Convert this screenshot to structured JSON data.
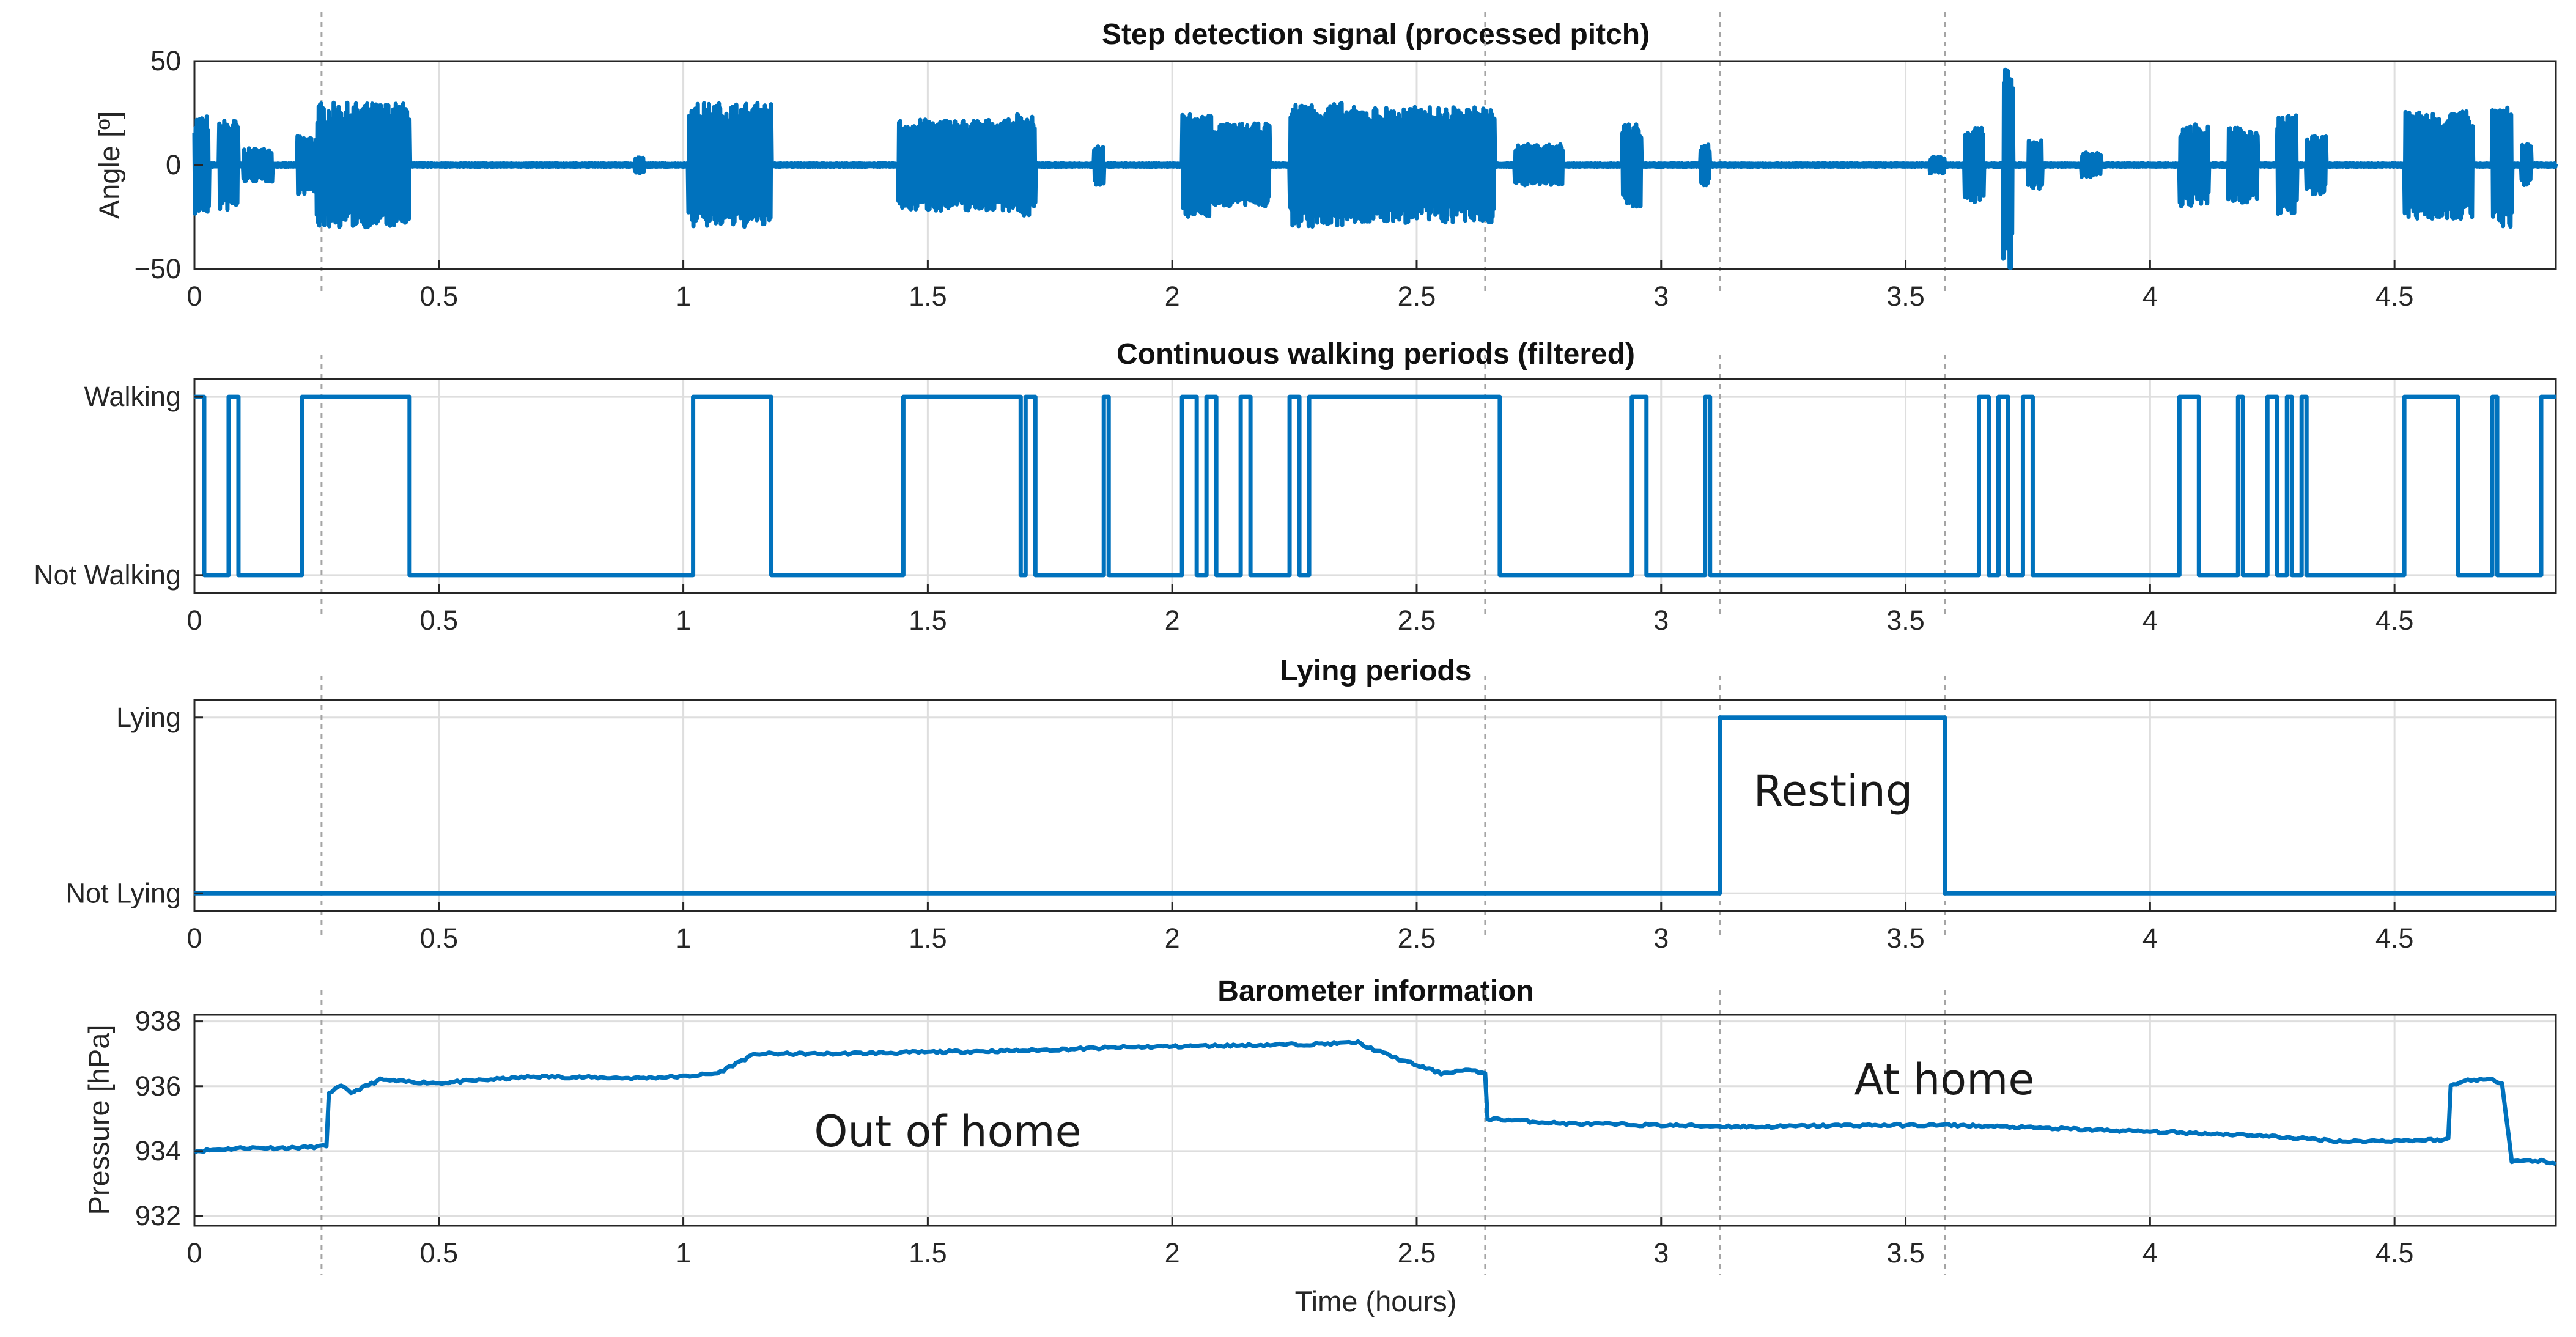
{
  "colors": {
    "series": "#0072bd"
  },
  "xlabel": "Time (hours)",
  "x_ticks": [
    0,
    0.5,
    1,
    1.5,
    2,
    2.5,
    3,
    3.5,
    4,
    4.5
  ],
  "x_tick_labels": [
    "0",
    "0.5",
    "1",
    "1.5",
    "2",
    "2.5",
    "3",
    "3.5",
    "4",
    "4.5"
  ],
  "xlim": [
    0,
    4.83
  ],
  "event_times": [
    0.26,
    2.64,
    3.12,
    3.58
  ],
  "chart_data": [
    {
      "type": "line",
      "title": "Step detection signal (processed pitch)",
      "ylabel": "Angle [º]",
      "ylim": [
        -50,
        50
      ],
      "y_ticks": [
        -50,
        0,
        50
      ],
      "y_tick_labels": [
        "−50",
        "0",
        "50"
      ],
      "note": "oscillating pitch signal; amplitude (deg) per burst interval",
      "bursts": [
        {
          "start": 0.0,
          "end": 0.03,
          "amp": 24
        },
        {
          "start": 0.05,
          "end": 0.09,
          "amp": 22
        },
        {
          "start": 0.1,
          "end": 0.16,
          "amp": 8
        },
        {
          "start": 0.21,
          "end": 0.25,
          "amp": 14
        },
        {
          "start": 0.25,
          "end": 0.44,
          "amp": 30
        },
        {
          "start": 0.9,
          "end": 0.92,
          "amp": 4
        },
        {
          "start": 1.01,
          "end": 1.18,
          "amp": 30
        },
        {
          "start": 1.44,
          "end": 1.68,
          "amp": 22
        },
        {
          "start": 1.68,
          "end": 1.72,
          "amp": 25
        },
        {
          "start": 1.84,
          "end": 1.86,
          "amp": 10
        },
        {
          "start": 2.02,
          "end": 2.08,
          "amp": 25
        },
        {
          "start": 2.08,
          "end": 2.2,
          "amp": 20
        },
        {
          "start": 2.24,
          "end": 2.35,
          "amp": 30
        },
        {
          "start": 2.35,
          "end": 2.66,
          "amp": 28
        },
        {
          "start": 2.7,
          "end": 2.8,
          "amp": 10
        },
        {
          "start": 2.92,
          "end": 2.96,
          "amp": 20
        },
        {
          "start": 3.08,
          "end": 3.1,
          "amp": 10
        },
        {
          "start": 3.55,
          "end": 3.58,
          "amp": 4
        },
        {
          "start": 3.62,
          "end": 3.66,
          "amp": 18
        },
        {
          "start": 3.7,
          "end": 3.72,
          "amp": 50
        },
        {
          "start": 3.75,
          "end": 3.78,
          "amp": 12
        },
        {
          "start": 3.86,
          "end": 3.9,
          "amp": 6
        },
        {
          "start": 4.06,
          "end": 4.12,
          "amp": 20
        },
        {
          "start": 4.16,
          "end": 4.22,
          "amp": 18
        },
        {
          "start": 4.26,
          "end": 4.3,
          "amp": 24
        },
        {
          "start": 4.32,
          "end": 4.36,
          "amp": 14
        },
        {
          "start": 4.52,
          "end": 4.66,
          "amp": 26
        },
        {
          "start": 4.7,
          "end": 4.74,
          "amp": 30
        },
        {
          "start": 4.76,
          "end": 4.78,
          "amp": 10
        }
      ]
    },
    {
      "type": "line",
      "title": "Continuous walking periods (filtered)",
      "y_tick_labels": [
        "Not Walking",
        "Walking"
      ],
      "ylim": [
        -0.1,
        1.1
      ],
      "walking_intervals": [
        [
          0.0,
          0.02
        ],
        [
          0.07,
          0.09
        ],
        [
          0.22,
          0.44
        ],
        [
          1.02,
          1.18
        ],
        [
          1.45,
          1.69
        ],
        [
          1.7,
          1.72
        ],
        [
          1.86,
          1.87
        ],
        [
          2.02,
          2.05
        ],
        [
          2.07,
          2.09
        ],
        [
          2.14,
          2.16
        ],
        [
          2.24,
          2.26
        ],
        [
          2.28,
          2.67
        ],
        [
          2.94,
          2.97
        ],
        [
          3.09,
          3.1
        ],
        [
          3.65,
          3.67
        ],
        [
          3.69,
          3.71
        ],
        [
          3.74,
          3.76
        ],
        [
          4.06,
          4.1
        ],
        [
          4.18,
          4.19
        ],
        [
          4.24,
          4.26
        ],
        [
          4.28,
          4.29
        ],
        [
          4.31,
          4.32
        ],
        [
          4.52,
          4.63
        ],
        [
          4.7,
          4.71
        ],
        [
          4.8,
          4.83
        ]
      ]
    },
    {
      "type": "line",
      "title": "Lying periods",
      "y_tick_labels": [
        "Not Lying",
        "Lying"
      ],
      "ylim": [
        -0.1,
        1.1
      ],
      "lying_intervals": [
        [
          3.12,
          3.58
        ]
      ],
      "annotation": "Resting"
    },
    {
      "type": "line",
      "title": "Barometer information",
      "ylabel": "Pressure [hPa]",
      "ylim": [
        931.7,
        938.2
      ],
      "y_ticks": [
        932,
        934,
        936,
        938
      ],
      "y_tick_labels": [
        "932",
        "934",
        "936",
        "938"
      ],
      "x": [
        0,
        0.1,
        0.2,
        0.27,
        0.275,
        0.3,
        0.32,
        0.35,
        0.38,
        0.42,
        0.5,
        0.7,
        0.9,
        1.0,
        1.07,
        1.12,
        1.15,
        1.3,
        1.5,
        1.7,
        1.9,
        2.1,
        2.3,
        2.38,
        2.4,
        2.47,
        2.55,
        2.6,
        2.64,
        2.645,
        2.7,
        2.8,
        3.0,
        3.2,
        3.4,
        3.6,
        3.8,
        4.0,
        4.2,
        4.4,
        4.6,
        4.61,
        4.615,
        4.65,
        4.7,
        4.72,
        4.74,
        4.8,
        4.83
      ],
      "y": [
        934.0,
        934.1,
        934.1,
        934.15,
        935.8,
        936.0,
        935.8,
        936.0,
        936.2,
        936.15,
        936.1,
        936.3,
        936.25,
        936.3,
        936.4,
        936.8,
        937.0,
        937.0,
        937.05,
        937.1,
        937.2,
        937.25,
        937.3,
        937.35,
        937.2,
        936.8,
        936.4,
        936.5,
        936.4,
        935.0,
        934.95,
        934.85,
        934.8,
        934.75,
        934.8,
        934.8,
        934.7,
        934.6,
        934.5,
        934.3,
        934.35,
        934.4,
        936.0,
        936.2,
        936.2,
        936.1,
        933.7,
        933.7,
        933.6
      ],
      "annotations": [
        "Out of home",
        "At home"
      ]
    }
  ]
}
